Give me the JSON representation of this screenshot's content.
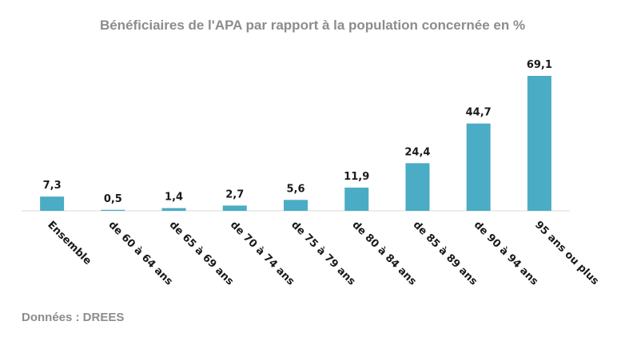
{
  "title": "Bénéficiaires de l'APA par rapport à la population concernée en %",
  "source": "Données : DREES",
  "colors": {
    "bar": "#4bacc6",
    "axis": "#d9d9d9",
    "title": "#8c8c8c",
    "text": "#1a1a1a"
  },
  "chart_data": {
    "type": "bar",
    "title": "Bénéficiaires de l'APA par rapport à la population concernée en %",
    "categories": [
      "Ensemble",
      "de 60 à 64 ans",
      "de 65 à 69 ans",
      "de 70 à 74 ans",
      "de 75 à 79 ans",
      "de 80 à 84 ans",
      "de 85 à 89 ans",
      "de 90 à 94 ans",
      "95 ans ou plus"
    ],
    "values": [
      7.3,
      0.5,
      1.4,
      2.7,
      5.6,
      11.9,
      24.4,
      44.7,
      69.1
    ],
    "value_labels": [
      "7,3",
      "0,5",
      "1,4",
      "2,7",
      "5,6",
      "11,9",
      "24,4",
      "44,7",
      "69,1"
    ],
    "xlabel": "",
    "ylabel": "",
    "ylim": [
      0,
      69.1
    ],
    "grid": false,
    "legend": "none",
    "data_labels": true
  }
}
